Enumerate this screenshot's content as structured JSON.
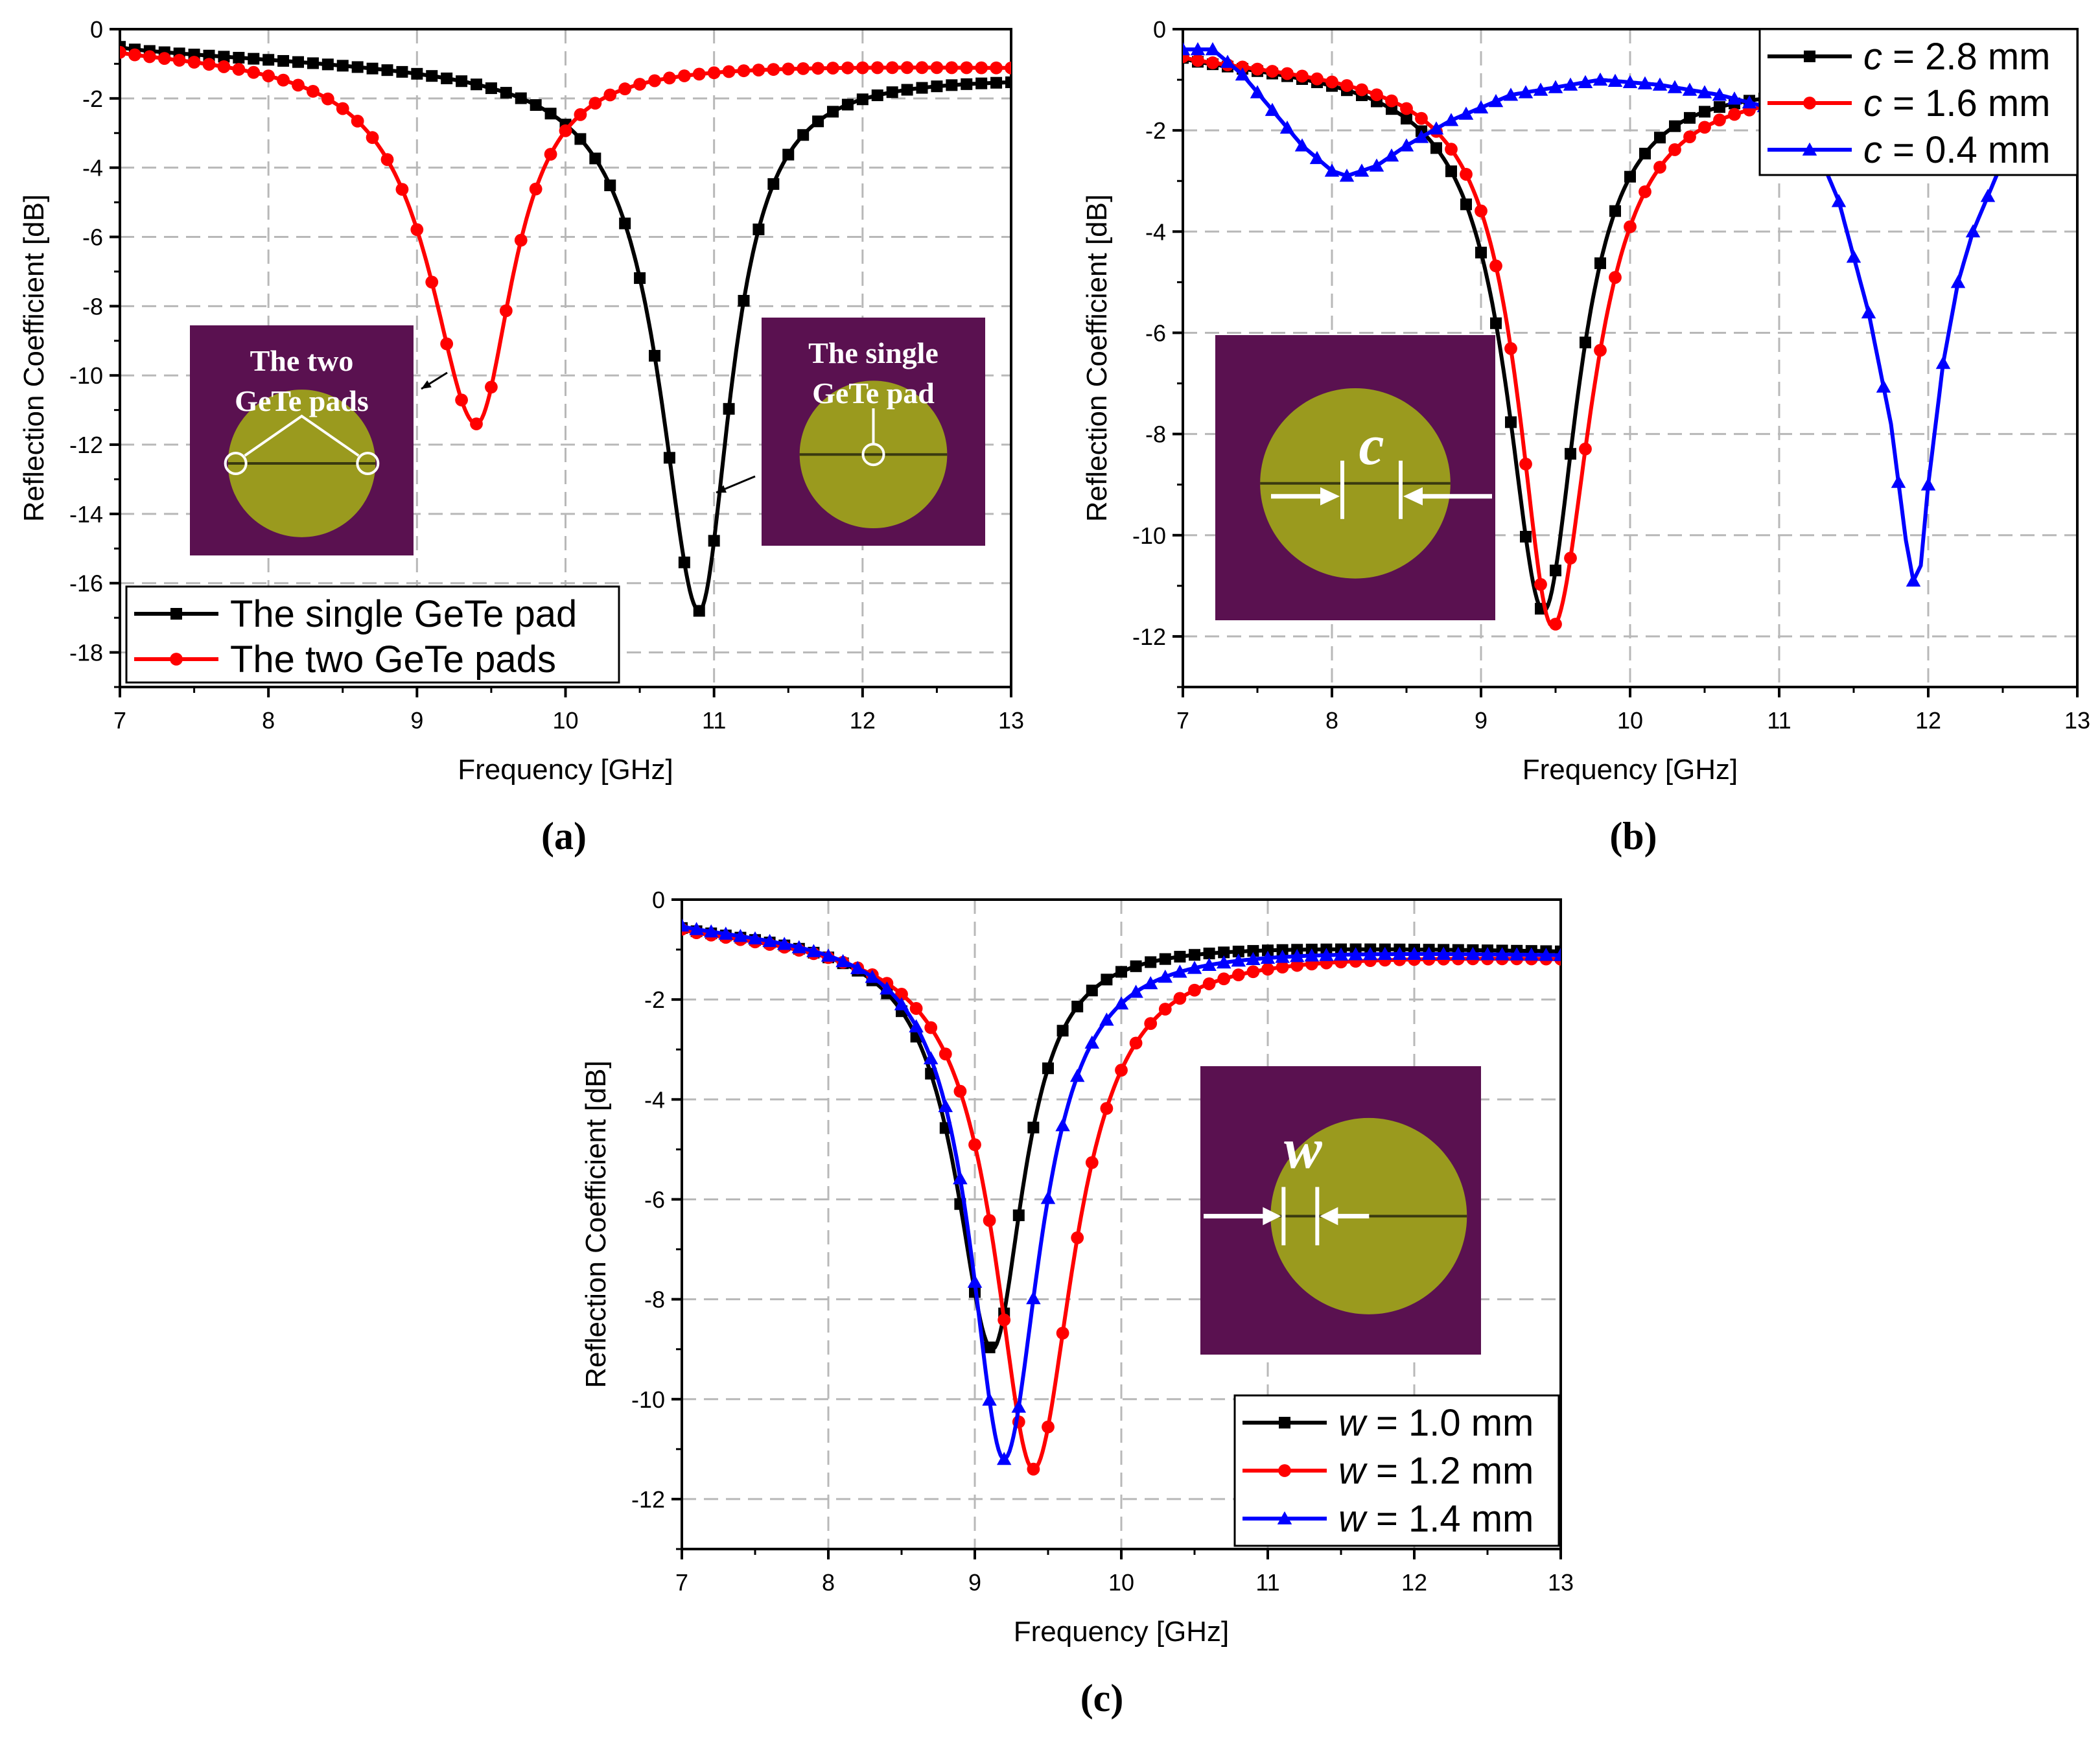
{
  "panels": [
    {
      "caption": "(a)",
      "inset": {
        "type": "two",
        "label_lines": [
          "The two",
          "GeTe pads"
        ]
      },
      "inset2": {
        "type": "single",
        "label_lines": [
          "The single",
          "GeTe pad"
        ]
      },
      "chart_data": {
        "type": "line",
        "xlabel": "Frequency [GHz]",
        "ylabel": "Reflection Coefficient [dB]",
        "xlim": [
          7,
          13
        ],
        "ylim": [
          -19,
          0
        ],
        "xticks": [
          "7",
          "8",
          "9",
          "10",
          "11",
          "12",
          "13"
        ],
        "yticks": [
          "0",
          "-2",
          "-4",
          "-6",
          "-8",
          "-10",
          "-12",
          "-14",
          "-16",
          "-18"
        ],
        "grid": true,
        "legend_position": "bottom-left",
        "series": [
          {
            "name": "The single GeTe pad",
            "color": "#000000",
            "marker": "square",
            "resonance": {
              "f0": 10.9,
              "min": -16.8,
              "left_width": 0.32,
              "right_width": 0.26,
              "level_start": -0.4,
              "level_end": -1.3
            }
          },
          {
            "name": "The two GeTe pads",
            "color": "#ff0000",
            "marker": "circle",
            "resonance": {
              "f0": 9.4,
              "min": -11.4,
              "left_width": 0.38,
              "right_width": 0.3,
              "level_start": -0.4,
              "level_end": -1.05
            }
          }
        ]
      }
    },
    {
      "caption": "(b)",
      "inset": {
        "type": "c",
        "symbol": "c"
      },
      "chart_data": {
        "type": "line",
        "xlabel": "Frequency [GHz]",
        "ylabel": "Reflection Coefficient [dB]",
        "xlim": [
          7,
          13
        ],
        "ylim": [
          -13,
          0
        ],
        "xticks": [
          "7",
          "8",
          "9",
          "10",
          "11",
          "12",
          "13"
        ],
        "yticks": [
          "0",
          "-2",
          "-4",
          "-6",
          "-8",
          "-10",
          "-12"
        ],
        "grid": true,
        "legend_position": "top-right",
        "series": [
          {
            "name": "c = 2.8 mm",
            "name_symbol": "c",
            "name_rest": " = 2.8 mm",
            "color": "#000000",
            "marker": "square",
            "resonance": {
              "f0": 9.42,
              "min": -11.5,
              "left_width": 0.3,
              "right_width": 0.28,
              "level_start": -0.4,
              "level_end": -1.2
            }
          },
          {
            "name": "c = 1.6 mm",
            "name_symbol": "c",
            "name_rest": " = 1.6 mm",
            "color": "#ff0000",
            "marker": "circle",
            "resonance": {
              "f0": 9.48,
              "min": -11.8,
              "left_width": 0.28,
              "right_width": 0.32,
              "level_start": -0.4,
              "level_end": -1.2
            }
          },
          {
            "name": "c = 0.4 mm",
            "name_symbol": "c",
            "name_rest": " = 0.4 mm",
            "color": "#0000ff",
            "marker": "triangle",
            "points": [
              [
                7.0,
                -0.4
              ],
              [
                7.2,
                -0.4
              ],
              [
                7.4,
                -0.9
              ],
              [
                7.6,
                -1.6
              ],
              [
                7.8,
                -2.3
              ],
              [
                8.0,
                -2.8
              ],
              [
                8.1,
                -2.9
              ],
              [
                8.3,
                -2.7
              ],
              [
                8.5,
                -2.3
              ],
              [
                8.8,
                -1.8
              ],
              [
                9.2,
                -1.3
              ],
              [
                9.6,
                -1.1
              ],
              [
                9.8,
                -1.0
              ],
              [
                10.2,
                -1.1
              ],
              [
                10.6,
                -1.3
              ],
              [
                11.0,
                -1.6
              ],
              [
                11.2,
                -2.0
              ],
              [
                11.4,
                -3.4
              ],
              [
                11.6,
                -5.6
              ],
              [
                11.75,
                -7.8
              ],
              [
                11.85,
                -10.1
              ],
              [
                11.9,
                -10.9
              ],
              [
                11.95,
                -10.6
              ],
              [
                12.0,
                -9.0
              ],
              [
                12.1,
                -6.6
              ],
              [
                12.2,
                -5.0
              ],
              [
                12.3,
                -4.0
              ],
              [
                12.4,
                -3.3
              ],
              [
                12.5,
                -2.6
              ]
            ]
          }
        ]
      }
    },
    {
      "caption": "(c)",
      "inset": {
        "type": "w",
        "symbol": "w"
      },
      "chart_data": {
        "type": "line",
        "xlabel": "Frequency [GHz]",
        "ylabel": "Reflection Coefficient [dB]",
        "xlim": [
          7,
          13
        ],
        "ylim": [
          -13,
          0
        ],
        "xticks": [
          "7",
          "8",
          "9",
          "10",
          "11",
          "12",
          "13"
        ],
        "yticks": [
          "0",
          "-2",
          "-4",
          "-6",
          "-8",
          "-10",
          "-12"
        ],
        "grid": true,
        "legend_position": "bottom-right",
        "series": [
          {
            "name": "w = 1.0 mm",
            "name_symbol": "w",
            "name_rest": " = 1.0 mm",
            "color": "#000000",
            "marker": "square",
            "resonance": {
              "f0": 9.12,
              "min": -9.0,
              "left_width": 0.3,
              "right_width": 0.26,
              "level_start": -0.4,
              "level_end": -1.0
            }
          },
          {
            "name": "w = 1.2 mm",
            "name_symbol": "w",
            "name_rest": " = 1.2 mm",
            "color": "#ff0000",
            "marker": "circle",
            "resonance": {
              "f0": 9.4,
              "min": -11.4,
              "left_width": 0.32,
              "right_width": 0.34,
              "level_start": -0.4,
              "level_end": -1.1
            }
          },
          {
            "name": "w = 1.4 mm",
            "name_symbol": "w",
            "name_rest": " = 1.4 mm",
            "color": "#0000ff",
            "marker": "triangle",
            "resonance": {
              "f0": 9.2,
              "min": -11.2,
              "left_width": 0.28,
              "right_width": 0.3,
              "level_start": -0.35,
              "level_end": -1.05
            }
          }
        ]
      }
    }
  ]
}
